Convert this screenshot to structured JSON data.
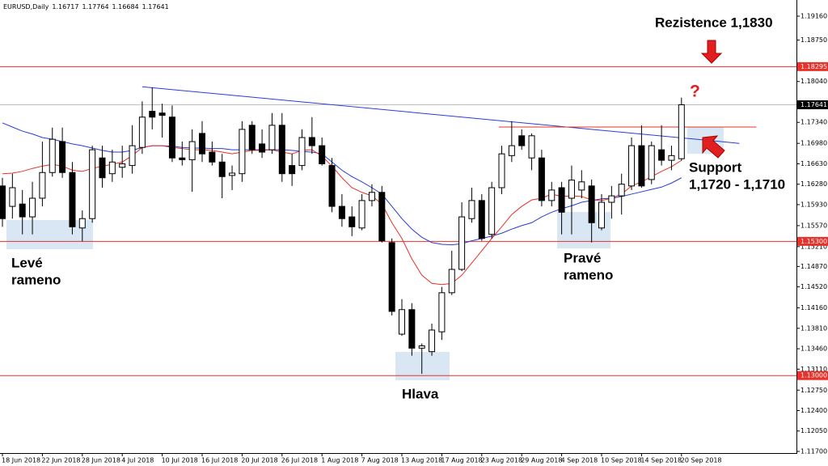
{
  "chart_data": {
    "type": "candlestick",
    "symbol": "EURUSD,Daily",
    "categories": [
      "18 Jun 2018",
      null,
      null,
      null,
      "22 Jun 2018",
      null,
      null,
      null,
      "28 Jun 2018",
      null,
      null,
      null,
      "4 Jul 2018",
      null,
      null,
      null,
      "10 Jul 2018",
      null,
      null,
      null,
      "16 Jul 2018",
      null,
      null,
      null,
      "20 Jul 2018",
      null,
      null,
      null,
      "26 Jul 2018",
      null,
      null,
      null,
      "1 Aug 2018",
      null,
      null,
      null,
      "7 Aug 2018",
      null,
      null,
      null,
      "13 Aug 2018",
      null,
      null,
      null,
      "17 Aug 2018",
      null,
      null,
      null,
      "23 Aug 2018",
      null,
      null,
      null,
      "29 Aug 2018",
      null,
      null,
      null,
      "4 Sep 2018",
      null,
      null,
      null,
      "10 Sep 2018",
      null,
      null,
      null,
      "14 Sep 2018",
      null,
      null,
      null,
      "20 Sep 2018"
    ],
    "candles": {
      "open": [
        1.1625,
        1.159,
        1.1594,
        1.1572,
        1.1604,
        1.1648,
        1.1701,
        1.1648,
        1.1553,
        1.1569,
        1.1673,
        1.1646,
        1.1657,
        1.166,
        1.1691,
        1.1753,
        1.175,
        1.1743,
        1.1673,
        1.167,
        1.1715,
        1.1683,
        1.1666,
        1.1643,
        1.1646,
        1.1729,
        1.1697,
        1.1687,
        1.1729,
        1.166,
        1.166,
        1.1708,
        1.1694,
        1.166,
        1.159,
        1.1572,
        1.1553,
        1.16,
        1.1614,
        1.1528,
        1.1371,
        1.1413,
        1.1347,
        1.1341,
        1.1375,
        1.1442,
        1.1482,
        1.1569,
        1.16,
        1.1542,
        1.1622,
        1.1677,
        1.1711,
        1.1673,
        1.1673,
        1.16,
        1.1622,
        1.1604,
        1.1618,
        1.1625,
        1.1553,
        1.1597,
        1.1608,
        1.1625,
        1.1694,
        1.1636,
        1.1687,
        1.1669,
        1.16717
      ],
      "high": [
        1.1639,
        1.1646,
        1.1618,
        1.1632,
        1.1701,
        1.1725,
        1.1725,
        1.1666,
        1.1583,
        1.1694,
        1.1694,
        1.1687,
        1.1694,
        1.1729,
        1.177,
        1.1794,
        1.1766,
        1.1763,
        1.1701,
        1.1722,
        1.1736,
        1.1701,
        1.168,
        1.166,
        1.1736,
        1.1736,
        1.1722,
        1.175,
        1.175,
        1.168,
        1.1722,
        1.1743,
        1.1708,
        1.1673,
        1.1611,
        1.159,
        1.1611,
        1.1628,
        1.1625,
        1.1535,
        1.1431,
        1.1424,
        1.1355,
        1.1389,
        1.1452,
        1.1514,
        1.1597,
        1.1622,
        1.1611,
        1.1632,
        1.1694,
        1.1736,
        1.1722,
        1.1715,
        1.1687,
        1.1632,
        1.1632,
        1.166,
        1.1652,
        1.1636,
        1.1611,
        1.1625,
        1.1646,
        1.1708,
        1.1729,
        1.1701,
        1.1729,
        1.1694,
        1.17764
      ],
      "low": [
        1.1555,
        1.1569,
        1.1542,
        1.1542,
        1.159,
        1.1641,
        1.1639,
        1.1542,
        1.153,
        1.1562,
        1.1622,
        1.1632,
        1.1639,
        1.1646,
        1.168,
        1.1722,
        1.1708,
        1.1666,
        1.166,
        1.1615,
        1.1666,
        1.166,
        1.1604,
        1.1618,
        1.1632,
        1.168,
        1.1673,
        1.168,
        1.1632,
        1.1625,
        1.1652,
        1.168,
        1.166,
        1.158,
        1.1555,
        1.1539,
        1.1549,
        1.159,
        1.1528,
        1.1403,
        1.1368,
        1.1334,
        1.1303,
        1.1334,
        1.1361,
        1.1438,
        1.1479,
        1.1562,
        1.1531,
        1.1535,
        1.1611,
        1.1666,
        1.1687,
        1.1652,
        1.159,
        1.159,
        1.1542,
        1.1542,
        1.1604,
        1.1528,
        1.1549,
        1.1569,
        1.1576,
        1.1618,
        1.1622,
        1.1628,
        1.166,
        1.1652,
        1.16684
      ],
      "close": [
        1.1569,
        1.1622,
        1.1572,
        1.1604,
        1.1648,
        1.1705,
        1.1648,
        1.1555,
        1.1569,
        1.1687,
        1.1639,
        1.1666,
        1.1663,
        1.1694,
        1.1743,
        1.1743,
        1.1746,
        1.1673,
        1.167,
        1.1701,
        1.168,
        1.1666,
        1.1641,
        1.1647,
        1.1722,
        1.1687,
        1.1683,
        1.1729,
        1.1646,
        1.1646,
        1.1708,
        1.1694,
        1.1663,
        1.159,
        1.1569,
        1.1555,
        1.16,
        1.1614,
        1.1531,
        1.141,
        1.1413,
        1.1347,
        1.1351,
        1.1378,
        1.1442,
        1.1482,
        1.1572,
        1.16,
        1.1535,
        1.1622,
        1.168,
        1.1694,
        1.1694,
        1.1711,
        1.16,
        1.1618,
        1.158,
        1.1635,
        1.1632,
        1.1562,
        1.1597,
        1.1608,
        1.1628,
        1.1694,
        1.1625,
        1.1694,
        1.1669,
        1.1677,
        1.17641
      ]
    },
    "up_color": "#ffffff",
    "down_color": "#000000",
    "moving_averages": [
      {
        "color": "#2a3bd9",
        "values": [
          1.1733,
          1.1726,
          1.1719,
          1.1714,
          1.1708,
          1.1705,
          1.1701,
          1.1697,
          1.1694,
          1.169,
          1.1686,
          1.1683,
          1.1683,
          1.1686,
          1.1691,
          1.1694,
          1.1694,
          1.1693,
          1.1691,
          1.169,
          1.169,
          1.1689,
          1.1689,
          1.1687,
          1.1687,
          1.1687,
          1.1687,
          1.1687,
          1.1687,
          1.1686,
          1.1684,
          1.1683,
          1.168,
          1.1666,
          1.1652,
          1.1641,
          1.1632,
          1.1622,
          1.1611,
          1.159,
          1.1569,
          1.1551,
          1.1537,
          1.1528,
          1.1525,
          1.1524,
          1.1526,
          1.1531,
          1.1535,
          1.1539,
          1.1544,
          1.1551,
          1.1557,
          1.1562,
          1.1572,
          1.158,
          1.1586,
          1.1591,
          1.1597,
          1.16,
          1.1603,
          1.1604,
          1.1607,
          1.1611,
          1.1615,
          1.1619,
          1.1623,
          1.163,
          1.1639
        ]
      },
      {
        "color": "#e8312a",
        "values": [
          1.1646,
          1.1647,
          1.165,
          1.1655,
          1.1659,
          1.1662,
          1.1659,
          1.1652,
          1.165,
          1.1655,
          1.1659,
          1.1662,
          1.1666,
          1.1677,
          1.1691,
          1.1694,
          1.1694,
          1.1691,
          1.1689,
          1.1687,
          1.1687,
          1.1686,
          1.1683,
          1.168,
          1.1683,
          1.1686,
          1.1686,
          1.1687,
          1.1683,
          1.168,
          1.1686,
          1.1687,
          1.1676,
          1.1659,
          1.1639,
          1.1622,
          1.1614,
          1.1608,
          1.1594,
          1.1562,
          1.1535,
          1.15,
          1.1472,
          1.1458,
          1.1456,
          1.1458,
          1.1472,
          1.1493,
          1.1514,
          1.1535,
          1.1555,
          1.1576,
          1.159,
          1.1601,
          1.1604,
          1.1611,
          1.1607,
          1.1608,
          1.1607,
          1.1601,
          1.16,
          1.1604,
          1.1611,
          1.1625,
          1.1632,
          1.1641,
          1.165,
          1.1658,
          1.1669
        ]
      }
    ],
    "trendlines": [
      {
        "color": "#2a3bd9",
        "x": [
          14,
          73.8
        ],
        "y": [
          1.1795,
          1.1698
        ]
      },
      {
        "color": "#e8312a",
        "x": [
          49.7,
          75.5
        ],
        "y": [
          1.1726,
          1.1726
        ]
      }
    ],
    "levels": [
      1.18295,
      {
        "value": 1.153,
        "label": "1.15300"
      },
      {
        "value": 1.13,
        "label": "1.13000"
      }
    ],
    "level_color": "#e8312a",
    "ylim": [
      1.11672,
      1.19437
    ],
    "yticks": [
      {
        "value": 1.1916,
        "label": "1.19160"
      },
      {
        "value": 1.1875,
        "label": "1.18750"
      },
      {
        "value": 1.1804,
        "label": "1.18040"
      },
      {
        "value": 1.1734,
        "label": "1.17340"
      },
      {
        "value": 1.1698,
        "label": "1.16980"
      },
      {
        "value": 1.1663,
        "label": "1.16630"
      },
      {
        "value": 1.1628,
        "label": "1.16280"
      },
      {
        "value": 1.1593,
        "label": "1.15930"
      },
      {
        "value": 1.1557,
        "label": "1.15570"
      },
      {
        "value": 1.1521,
        "label": "1.15210"
      },
      {
        "value": 1.1487,
        "label": "1.14870"
      },
      {
        "value": 1.1452,
        "label": "1.14520"
      },
      {
        "value": 1.1416,
        "label": "1.14160"
      },
      {
        "value": 1.1381,
        "label": "1.13810"
      },
      {
        "value": 1.1346,
        "label": "1.13460"
      },
      {
        "value": 1.1311,
        "label": "1.13110"
      },
      {
        "value": 1.1275,
        "label": "1.12750"
      },
      {
        "value": 1.124,
        "label": "1.12400"
      },
      {
        "value": 1.1205,
        "label": "1.12050"
      },
      {
        "value": 1.117,
        "label": "1.11700"
      }
    ],
    "grid": false,
    "annotations": {
      "resistance": "Rezistence 1,1830",
      "question": "?",
      "support": [
        "Support",
        "1,1720 - 1,1710"
      ],
      "left_shoulder": [
        "Levé",
        "rameno"
      ],
      "head": "Hlava",
      "right_shoulder": [
        "Pravé",
        "rameno"
      ]
    }
  }
}
